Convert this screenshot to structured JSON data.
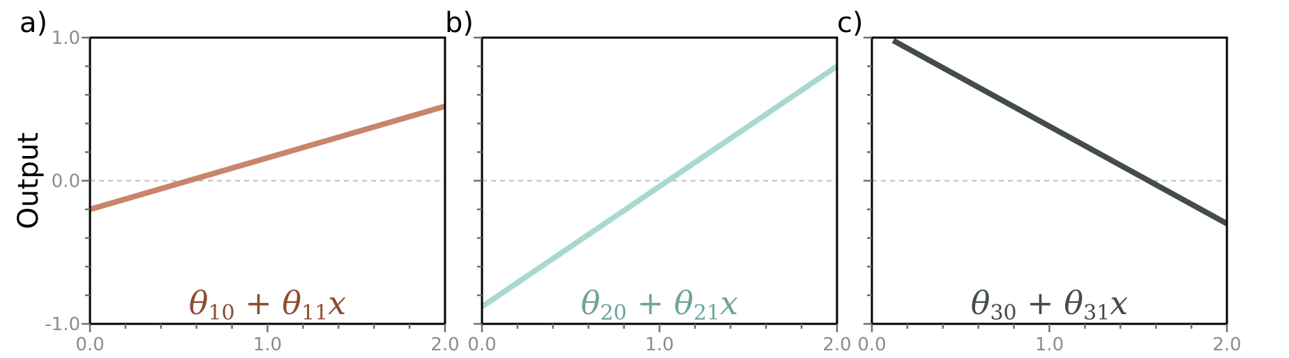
{
  "chart_data": [
    {
      "type": "line",
      "panel_label": "a)",
      "ylabel": "Output",
      "xlim": [
        0,
        2
      ],
      "ylim": [
        -1,
        1
      ],
      "x_ticks": [
        "0.0",
        "1.0",
        "2.0"
      ],
      "y_ticks": [
        "1.0",
        "0.0",
        "-1.0"
      ],
      "zero_line": "dashed gray",
      "series": [
        {
          "label_parts": [
            "θ",
            "10",
            " + θ",
            "11",
            "x"
          ],
          "color": "#c8856a",
          "label_color": "#8b4d33",
          "x": [
            0,
            2
          ],
          "y": [
            -0.2,
            0.52
          ]
        }
      ]
    },
    {
      "type": "line",
      "panel_label": "b)",
      "xlim": [
        0,
        2
      ],
      "ylim": [
        -1,
        1
      ],
      "x_ticks": [
        "0.0",
        "1.0",
        "2.0"
      ],
      "zero_line": "dashed gray",
      "series": [
        {
          "label_parts": [
            "θ",
            "20",
            " + θ",
            "21",
            "x"
          ],
          "color": "#a9d8d1",
          "label_color": "#6fa39c",
          "x": [
            0,
            2
          ],
          "y": [
            -0.88,
            0.8
          ]
        }
      ]
    },
    {
      "type": "line",
      "panel_label": "c)",
      "xlim": [
        0,
        2
      ],
      "ylim": [
        -1,
        1
      ],
      "x_ticks": [
        "0.0",
        "1.0",
        "2.0"
      ],
      "zero_line": "dashed gray",
      "series": [
        {
          "label_parts": [
            "θ",
            "30",
            " + θ",
            "31",
            "x"
          ],
          "color": "#444b4f",
          "label_color": "#444b4f",
          "x": [
            0.12,
            2
          ],
          "y": [
            0.98,
            -0.3
          ]
        }
      ]
    }
  ]
}
